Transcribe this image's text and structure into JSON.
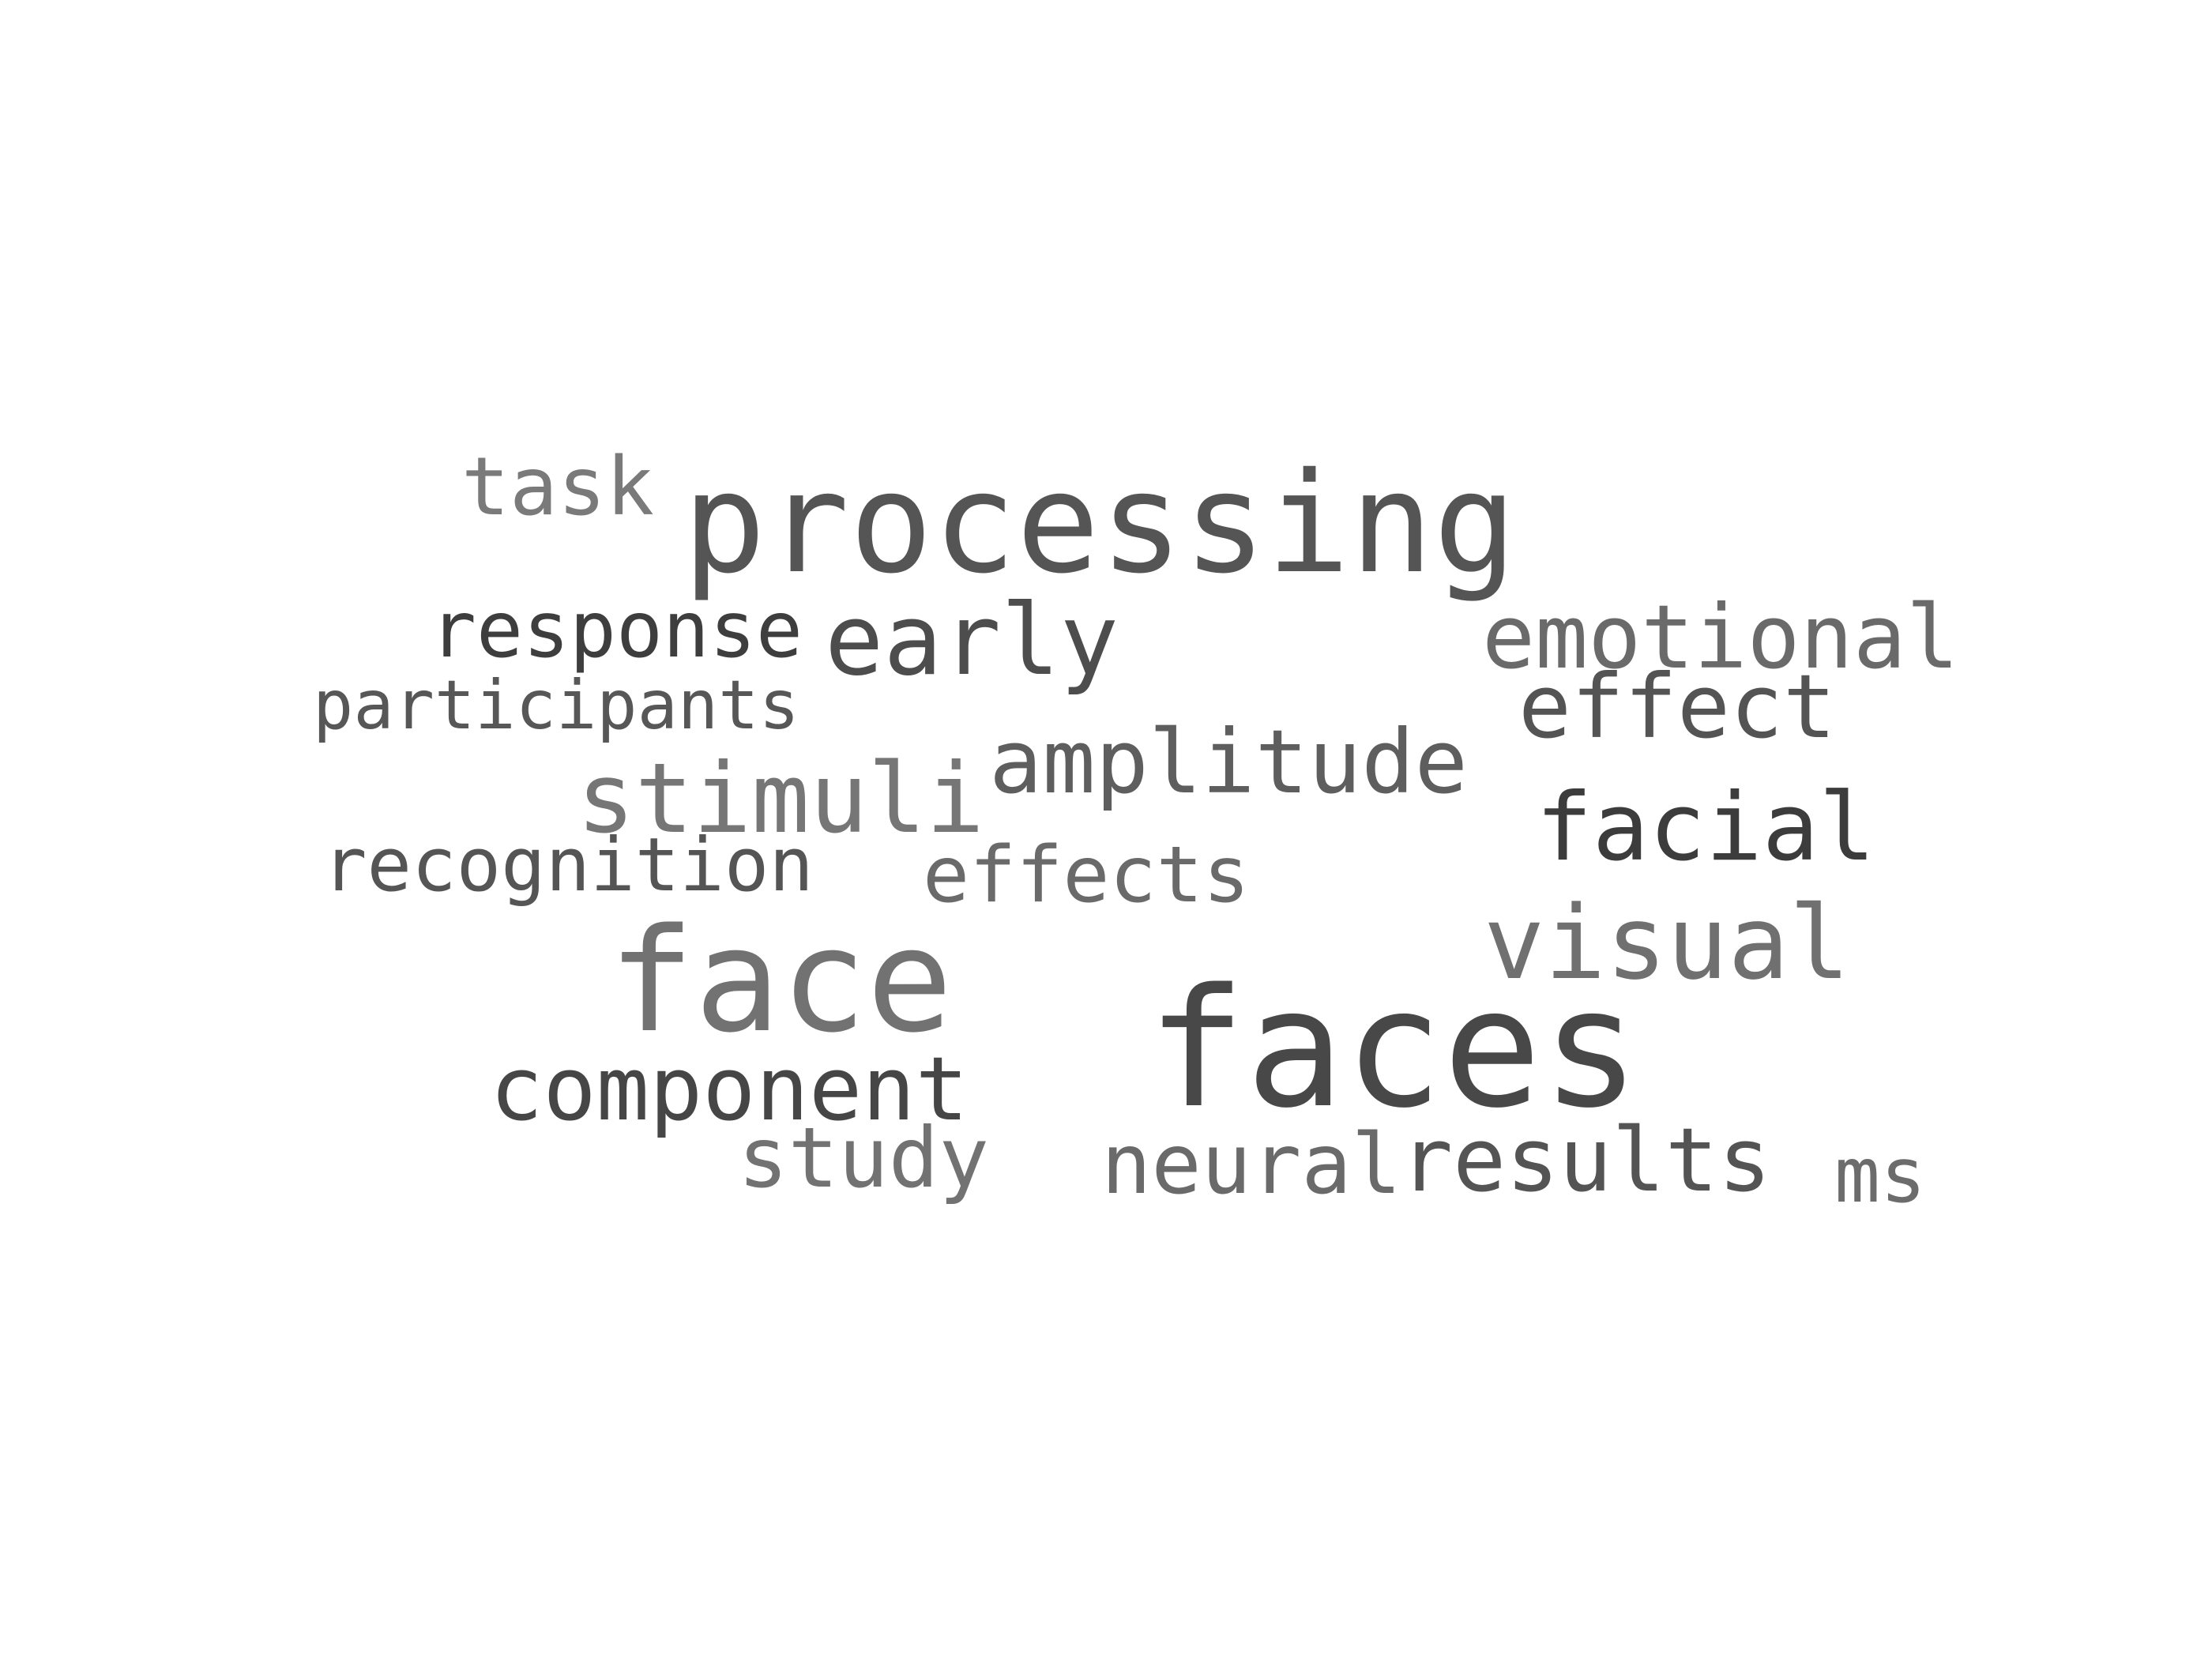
{
  "words": [
    {
      "text": "processing",
      "color": "#555555"
    },
    {
      "text": "faces",
      "color": "#484848"
    },
    {
      "text": "face",
      "color": "#727272"
    },
    {
      "text": "early",
      "color": "#4d4d4d"
    },
    {
      "text": "emotional",
      "color": "#6a6a6a"
    },
    {
      "text": "effect",
      "color": "#545454"
    },
    {
      "text": "amplitude",
      "color": "#5e5e5e"
    },
    {
      "text": "stimuli",
      "color": "#767676"
    },
    {
      "text": "facial",
      "color": "#3c3c3c"
    },
    {
      "text": "visual",
      "color": "#707070"
    },
    {
      "text": "component",
      "color": "#464646"
    },
    {
      "text": "response",
      "color": "#3e3e3e"
    },
    {
      "text": "task",
      "color": "#7a7a7a"
    },
    {
      "text": "participants",
      "color": "#575757"
    },
    {
      "text": "recognition",
      "color": "#555555"
    },
    {
      "text": "effects",
      "color": "#6a6a6a"
    },
    {
      "text": "study",
      "color": "#727272"
    },
    {
      "text": "neural",
      "color": "#6a6a6a"
    },
    {
      "text": "results",
      "color": "#545454"
    },
    {
      "text": "ms",
      "color": "#6c6c6c"
    }
  ]
}
